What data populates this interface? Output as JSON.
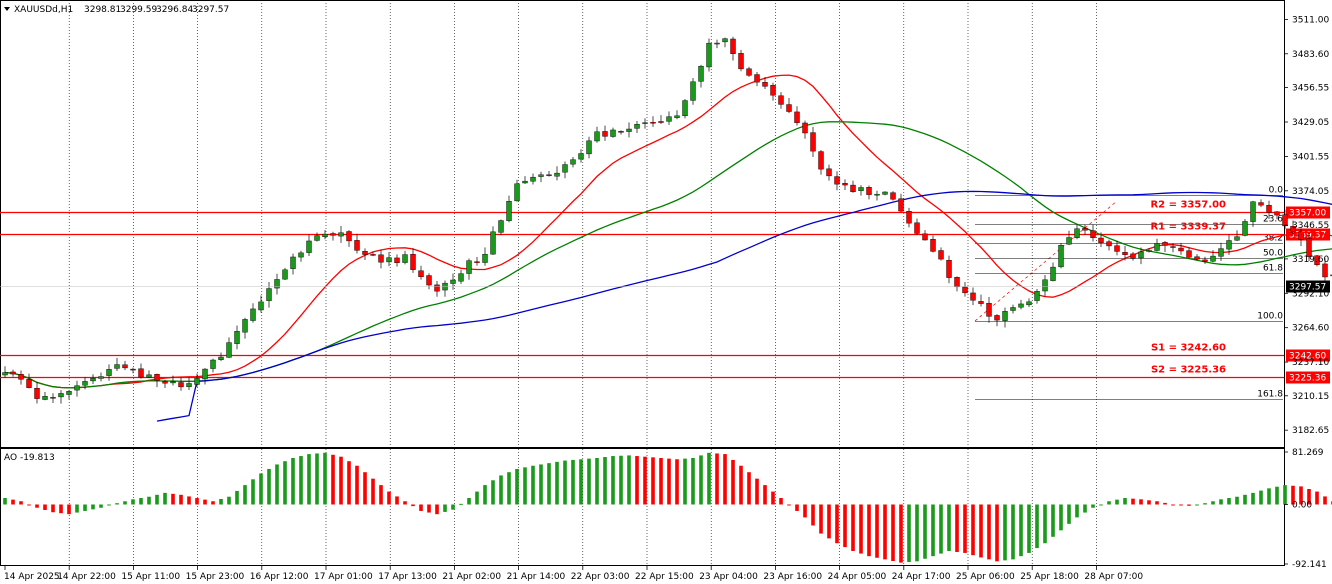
{
  "chart_title": "XAUUSDd,H1",
  "ohlc": {
    "open": "3298.81",
    "high": "3299.59",
    "low": "3296.84",
    "close": "3297.57"
  },
  "colors": {
    "bull": "#1a9a1a",
    "bear": "#ff0000",
    "ma_fast": "#ff0000",
    "ma_mid": "#008000",
    "ma_slow": "#0000cc",
    "level_line": "#ff0000",
    "level_box": "#ff0000",
    "price_tag": "#000000",
    "fib_line": "#000000",
    "ao_up": "#1a9a1a",
    "ao_down": "#ff0000"
  },
  "chart_data": {
    "type": "candlestick",
    "symbol": "XAUUSDd",
    "timeframe": "H1",
    "ylim": [
      3170,
      3525
    ],
    "y_ticks": [
      "3511.00",
      "3483.60",
      "3456.55",
      "3429.05",
      "3401.55",
      "3374.05",
      "3346.55",
      "3319.60",
      "3292.10",
      "3264.60",
      "3237.10",
      "3210.15",
      "3182.65"
    ],
    "x_ticks": [
      "14 Apr 2025",
      "14 Apr 22:00",
      "15 Apr 11:00",
      "15 Apr 23:00",
      "16 Apr 12:00",
      "17 Apr 01:00",
      "17 Apr 13:00",
      "21 Apr 02:00",
      "21 Apr 14:00",
      "22 Apr 03:00",
      "22 Apr 15:00",
      "23 Apr 04:00",
      "23 Apr 16:00",
      "24 Apr 05:00",
      "24 Apr 17:00",
      "25 Apr 06:00",
      "25 Apr 18:00",
      "28 Apr 07:00"
    ],
    "close_path": [
      3228,
      3222,
      3210,
      3206,
      3215,
      3222,
      3225,
      3232,
      3228,
      3225,
      3220,
      3218,
      3226,
      3237,
      3252,
      3268,
      3285,
      3300,
      3318,
      3332,
      3342,
      3338,
      3327,
      3322,
      3318,
      3320,
      3307,
      3294,
      3302,
      3316,
      3325,
      3352,
      3381,
      3382,
      3386,
      3394,
      3405,
      3418,
      3423,
      3425,
      3430,
      3430,
      3437,
      3458,
      3490,
      3494,
      3474,
      3460,
      3450,
      3440,
      3420,
      3392,
      3378,
      3375,
      3372,
      3370,
      3360,
      3342,
      3325,
      3308,
      3292,
      3282,
      3270,
      3280,
      3288,
      3302,
      3328,
      3345,
      3340,
      3330,
      3322,
      3325,
      3330,
      3328,
      3324,
      3318,
      3328,
      3340,
      3362,
      3360,
      3345,
      3332,
      3312,
      3304,
      3300,
      3296,
      3292,
      3288,
      3283,
      3280,
      3285,
      3295,
      3315,
      3312,
      3300,
      3282,
      3292,
      3297.57
    ],
    "current_price": "3297.57",
    "levels": [
      {
        "name": "R2",
        "label": "R2 = 3357.00",
        "value": 3357.0,
        "tag": "3357.00"
      },
      {
        "name": "R1",
        "label": "R1 = 3339.37",
        "value": 3339.37,
        "tag": "3339.37"
      },
      {
        "name": "S1",
        "label": "S1 = 3242.60",
        "value": 3242.6,
        "tag": "3242.60"
      },
      {
        "name": "S2",
        "label": "S2 = 3225.36",
        "value": 3225.36,
        "tag": "3225.36"
      }
    ],
    "fibonacci": {
      "high": 3371,
      "low": 3270,
      "levels": [
        {
          "label": "0.0",
          "ratio": 0
        },
        {
          "label": "23.6",
          "ratio": 0.236
        },
        {
          "label": "38.2",
          "ratio": 0.382
        },
        {
          "label": "50.0",
          "ratio": 0.5
        },
        {
          "label": "61.8",
          "ratio": 0.618
        },
        {
          "label": "100.0",
          "ratio": 1.0
        },
        {
          "label": "161.8",
          "ratio": 1.618
        }
      ]
    },
    "indicator": {
      "name": "AO",
      "title": "AO -19.813",
      "ylim": [
        -92.141,
        81.269
      ],
      "y_ticks": [
        "81.269",
        "0.00",
        "-92.141"
      ],
      "path": [
        10,
        5,
        -5,
        -12,
        -15,
        -10,
        -5,
        2,
        8,
        12,
        18,
        15,
        10,
        5,
        12,
        30,
        48,
        62,
        72,
        78,
        80,
        74,
        60,
        40,
        20,
        5,
        -10,
        -15,
        -8,
        10,
        30,
        45,
        55,
        60,
        64,
        68,
        70,
        72,
        75,
        76,
        74,
        72,
        70,
        72,
        80,
        78,
        60,
        40,
        20,
        0,
        -20,
        -45,
        -60,
        -72,
        -80,
        -85,
        -90,
        -88,
        -80,
        -72,
        -75,
        -82,
        -88,
        -85,
        -75,
        -60,
        -40,
        -20,
        -5,
        5,
        10,
        8,
        5,
        0,
        -2,
        2,
        8,
        12,
        18,
        25,
        30,
        28,
        20,
        5,
        -10,
        -20,
        -30,
        -35,
        -38,
        -40,
        -36,
        -28,
        -15,
        -5,
        0,
        -2,
        -10,
        -19.813
      ]
    }
  }
}
